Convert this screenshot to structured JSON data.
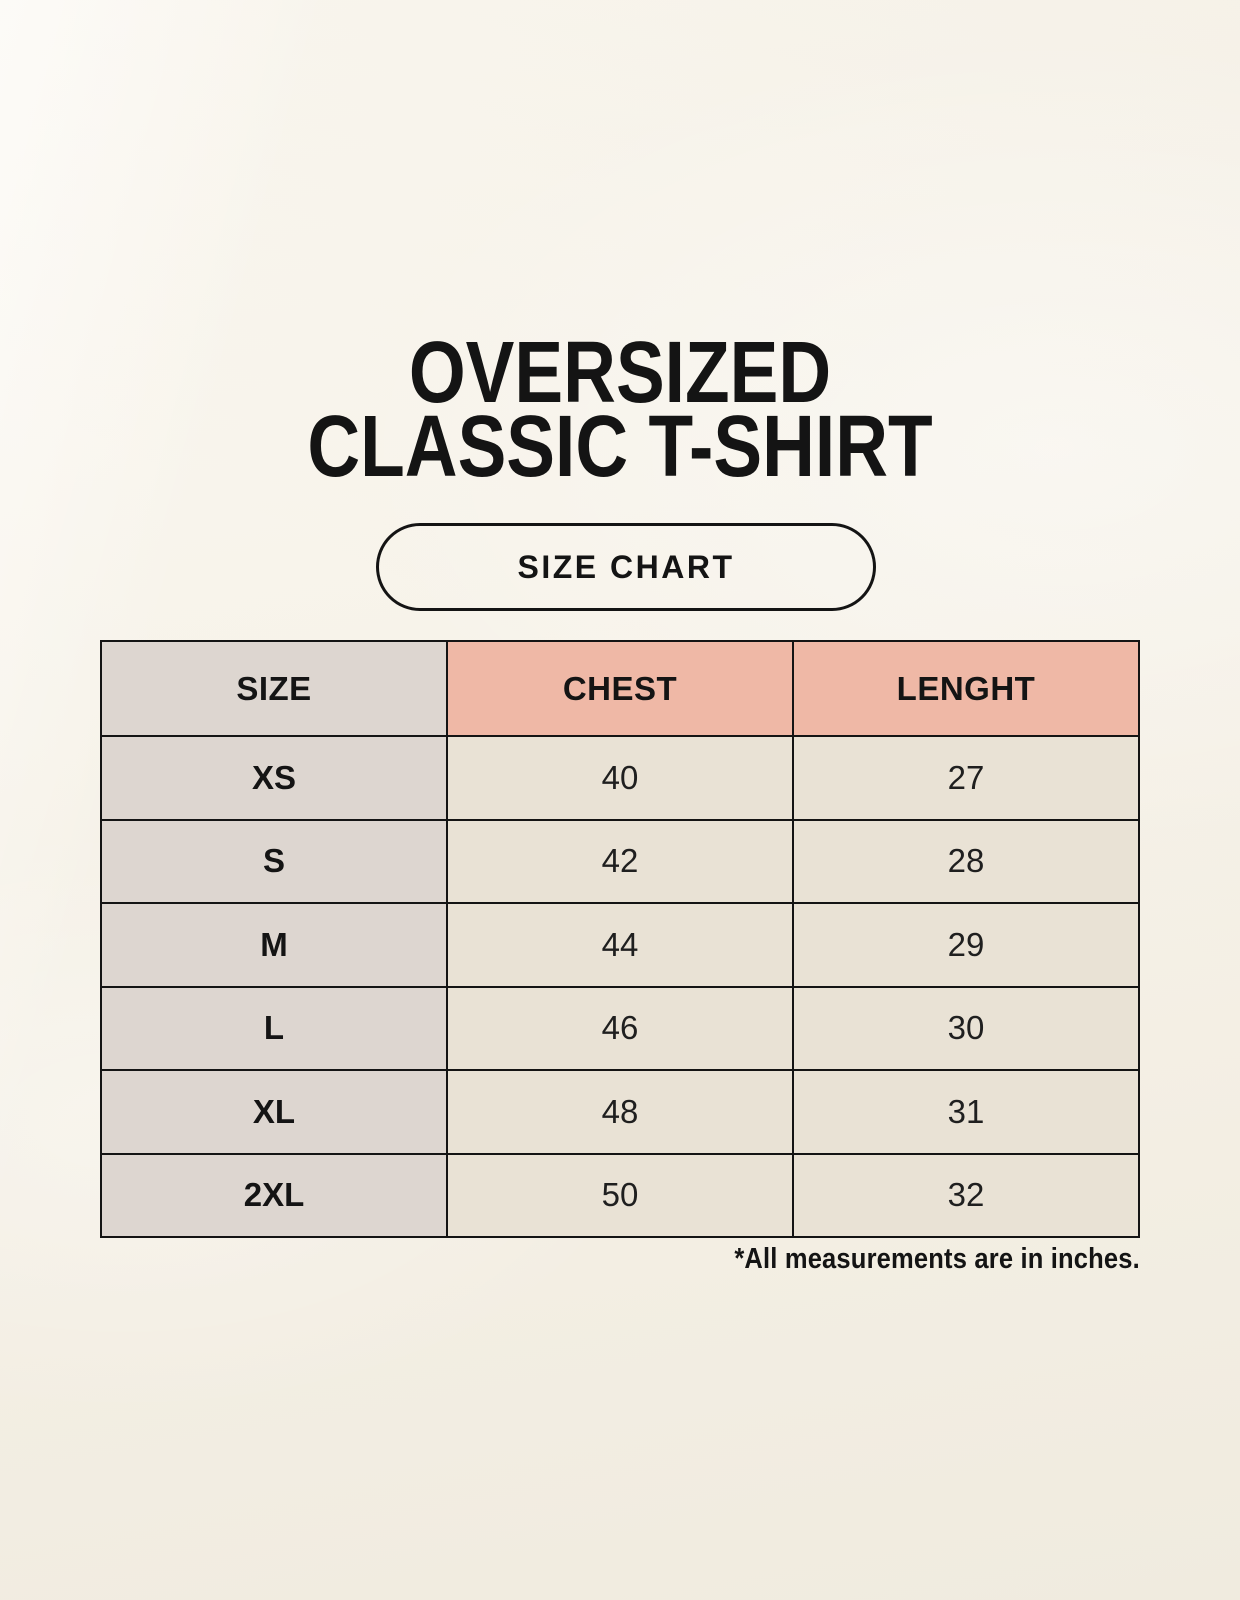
{
  "colors": {
    "background": "#f8f4ec",
    "header_accent": "#efb8a6",
    "size_column": "#ddd6d0",
    "cell": "#e9e2d5",
    "border": "#141414",
    "text": "#141414"
  },
  "header": {
    "title_line1": "OVERSIZED",
    "title_line2": "CLASSIC T-SHIRT",
    "badge_label": "SIZE CHART"
  },
  "chart_data": {
    "type": "table",
    "title": "OVERSIZED CLASSIC T-SHIRT SIZE CHART",
    "columns": [
      "SIZE",
      "CHEST",
      "LENGHT"
    ],
    "rows": [
      [
        "XS",
        "40",
        "27"
      ],
      [
        "S",
        "42",
        "28"
      ],
      [
        "M",
        "44",
        "29"
      ],
      [
        "L",
        "46",
        "30"
      ],
      [
        "XL",
        "48",
        "31"
      ],
      [
        "2XL",
        "50",
        "32"
      ]
    ],
    "units": "inches"
  },
  "footnote": "*All measurements are in inches."
}
